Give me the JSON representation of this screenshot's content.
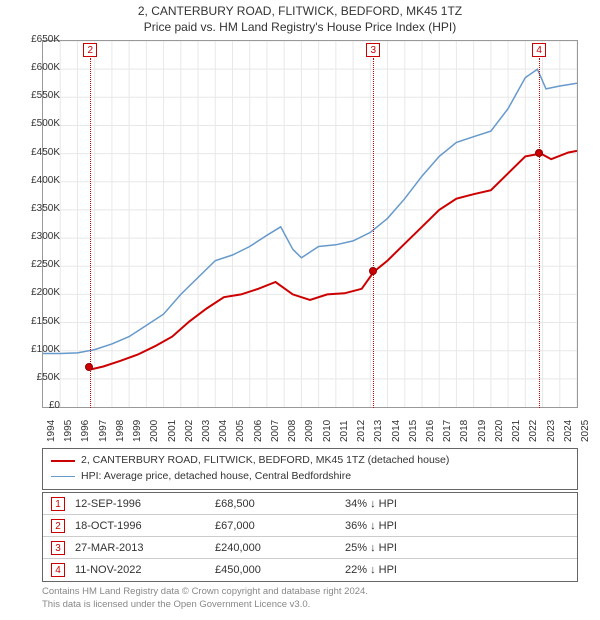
{
  "title_line1": "2, CANTERBURY ROAD, FLITWICK, BEDFORD, MK45 1TZ",
  "title_line2": "Price paid vs. HM Land Registry's House Price Index (HPI)",
  "chart": {
    "type": "line",
    "background_color": "#ffffff",
    "grid_color": "#e8e8e8",
    "border_color": "#999999",
    "x_axis": {
      "min_year": 1994,
      "max_year": 2025,
      "tick_step": 1,
      "labels": [
        "1994",
        "1995",
        "1996",
        "1997",
        "1998",
        "1999",
        "2000",
        "2001",
        "2002",
        "2003",
        "2004",
        "2005",
        "2006",
        "2007",
        "2008",
        "2009",
        "2010",
        "2011",
        "2012",
        "2013",
        "2014",
        "2015",
        "2016",
        "2017",
        "2018",
        "2019",
        "2020",
        "2021",
        "2022",
        "2023",
        "2024",
        "2025"
      ],
      "label_fontsize": 10,
      "label_rotation": -90
    },
    "y_axis": {
      "min": 0,
      "max": 650000,
      "tick_step": 50000,
      "labels": [
        "£0",
        "£50K",
        "£100K",
        "£150K",
        "£200K",
        "£250K",
        "£300K",
        "£350K",
        "£400K",
        "£450K",
        "£500K",
        "£550K",
        "£600K",
        "£650K"
      ],
      "label_fontsize": 10
    },
    "series": [
      {
        "name": "property",
        "label": "2, CANTERBURY ROAD, FLITWICK, BEDFORD, MK45 1TZ (detached house)",
        "color": "#cc0000",
        "line_width": 2,
        "points": [
          [
            1996.7,
            68500
          ],
          [
            1996.8,
            67000
          ],
          [
            1997.5,
            72000
          ],
          [
            1998.5,
            82000
          ],
          [
            1999.5,
            93000
          ],
          [
            2000.5,
            108000
          ],
          [
            2001.5,
            125000
          ],
          [
            2002.5,
            152000
          ],
          [
            2003.5,
            175000
          ],
          [
            2004.5,
            195000
          ],
          [
            2005.5,
            200000
          ],
          [
            2006.5,
            210000
          ],
          [
            2007.5,
            222000
          ],
          [
            2008.5,
            200000
          ],
          [
            2009.5,
            190000
          ],
          [
            2010.5,
            200000
          ],
          [
            2011.5,
            202000
          ],
          [
            2012.5,
            210000
          ],
          [
            2013.2,
            240000
          ],
          [
            2014.0,
            260000
          ],
          [
            2015.0,
            290000
          ],
          [
            2016.0,
            320000
          ],
          [
            2017.0,
            350000
          ],
          [
            2018.0,
            370000
          ],
          [
            2019.0,
            378000
          ],
          [
            2020.0,
            385000
          ],
          [
            2021.0,
            415000
          ],
          [
            2022.0,
            445000
          ],
          [
            2022.9,
            450000
          ],
          [
            2023.5,
            440000
          ],
          [
            2024.5,
            452000
          ],
          [
            2025.0,
            455000
          ]
        ]
      },
      {
        "name": "hpi",
        "label": "HPI: Average price, detached house, Central Bedfordshire",
        "color": "#6699cc",
        "line_width": 1.5,
        "points": [
          [
            1994.0,
            95000
          ],
          [
            1995.0,
            95000
          ],
          [
            1996.0,
            96000
          ],
          [
            1997.0,
            102000
          ],
          [
            1998.0,
            112000
          ],
          [
            1999.0,
            125000
          ],
          [
            2000.0,
            145000
          ],
          [
            2001.0,
            165000
          ],
          [
            2002.0,
            200000
          ],
          [
            2003.0,
            230000
          ],
          [
            2004.0,
            260000
          ],
          [
            2005.0,
            270000
          ],
          [
            2006.0,
            285000
          ],
          [
            2007.0,
            305000
          ],
          [
            2007.8,
            320000
          ],
          [
            2008.5,
            280000
          ],
          [
            2009.0,
            265000
          ],
          [
            2010.0,
            285000
          ],
          [
            2011.0,
            288000
          ],
          [
            2012.0,
            295000
          ],
          [
            2013.0,
            310000
          ],
          [
            2014.0,
            335000
          ],
          [
            2015.0,
            370000
          ],
          [
            2016.0,
            410000
          ],
          [
            2017.0,
            445000
          ],
          [
            2018.0,
            470000
          ],
          [
            2019.0,
            480000
          ],
          [
            2020.0,
            490000
          ],
          [
            2021.0,
            530000
          ],
          [
            2022.0,
            585000
          ],
          [
            2022.7,
            600000
          ],
          [
            2023.2,
            565000
          ],
          [
            2024.0,
            570000
          ],
          [
            2025.0,
            575000
          ]
        ]
      }
    ],
    "sale_markers": [
      {
        "n": "1",
        "year": 1996.7,
        "price": 68500,
        "dot": true,
        "box_visible": false
      },
      {
        "n": "2",
        "year": 1996.8,
        "price": 67000,
        "dot": false,
        "box_visible": true
      },
      {
        "n": "3",
        "year": 2013.23,
        "price": 240000,
        "dot": true,
        "box_visible": true
      },
      {
        "n": "4",
        "year": 2022.86,
        "price": 450000,
        "dot": true,
        "box_visible": true
      }
    ]
  },
  "legend": {
    "rows": [
      {
        "color": "#cc0000",
        "width": 2,
        "label": "2, CANTERBURY ROAD, FLITWICK, BEDFORD, MK45 1TZ (detached house)"
      },
      {
        "color": "#6699cc",
        "width": 1.5,
        "label": "HPI: Average price, detached house, Central Bedfordshire"
      }
    ]
  },
  "sales_table": {
    "hpi_suffix": " HPI",
    "arrow": "↓",
    "rows": [
      {
        "n": "1",
        "date": "12-SEP-1996",
        "price": "£68,500",
        "diff": "34%"
      },
      {
        "n": "2",
        "date": "18-OCT-1996",
        "price": "£67,000",
        "diff": "36%"
      },
      {
        "n": "3",
        "date": "27-MAR-2013",
        "price": "£240,000",
        "diff": "25%"
      },
      {
        "n": "4",
        "date": "11-NOV-2022",
        "price": "£450,000",
        "diff": "22%"
      }
    ]
  },
  "footer": {
    "line1": "Contains HM Land Registry data © Crown copyright and database right 2024.",
    "line2": "This data is licensed under the Open Government Licence v3.0."
  },
  "colors": {
    "red": "#cc0000",
    "blue": "#6699cc",
    "text": "#333333",
    "muted": "#888888",
    "border": "#666666"
  }
}
